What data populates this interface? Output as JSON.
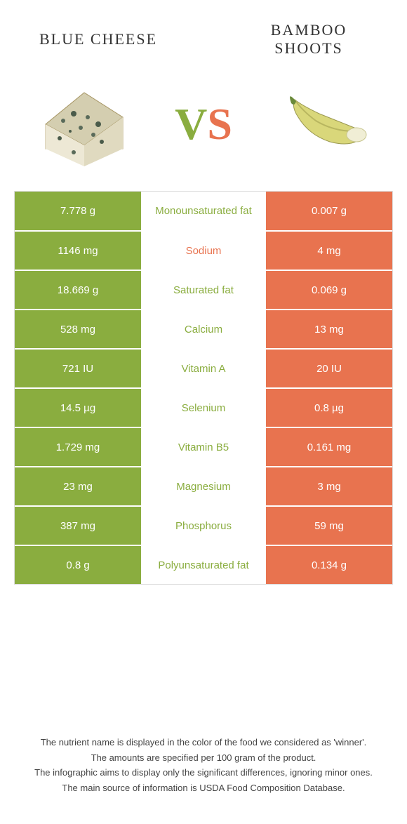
{
  "header": {
    "left_title": "Blue cheese",
    "right_title": "Bamboo shoots",
    "vs_v": "V",
    "vs_s": "S"
  },
  "colors": {
    "left": "#8aad3f",
    "right": "#e8734f",
    "background": "#ffffff",
    "text": "#333333"
  },
  "table": {
    "rows": [
      {
        "left": "7.778 g",
        "label": "Monounsaturated fat",
        "right": "0.007 g",
        "winner": "left"
      },
      {
        "left": "1146 mg",
        "label": "Sodium",
        "right": "4 mg",
        "winner": "right"
      },
      {
        "left": "18.669 g",
        "label": "Saturated fat",
        "right": "0.069 g",
        "winner": "left"
      },
      {
        "left": "528 mg",
        "label": "Calcium",
        "right": "13 mg",
        "winner": "left"
      },
      {
        "left": "721 IU",
        "label": "Vitamin A",
        "right": "20 IU",
        "winner": "left"
      },
      {
        "left": "14.5 µg",
        "label": "Selenium",
        "right": "0.8 µg",
        "winner": "left"
      },
      {
        "left": "1.729 mg",
        "label": "Vitamin B5",
        "right": "0.161 mg",
        "winner": "left"
      },
      {
        "left": "23 mg",
        "label": "Magnesium",
        "right": "3 mg",
        "winner": "left"
      },
      {
        "left": "387 mg",
        "label": "Phosphorus",
        "right": "59 mg",
        "winner": "left"
      },
      {
        "left": "0.8 g",
        "label": "Polyunsaturated fat",
        "right": "0.134 g",
        "winner": "left"
      }
    ]
  },
  "footer": {
    "line1": "The nutrient name is displayed in the color of the food we considered as 'winner'.",
    "line2": "The amounts are specified per 100 gram of the product.",
    "line3": "The infographic aims to display only the significant differences, ignoring minor ones.",
    "line4": "The main source of information is USDA Food Composition Database."
  }
}
